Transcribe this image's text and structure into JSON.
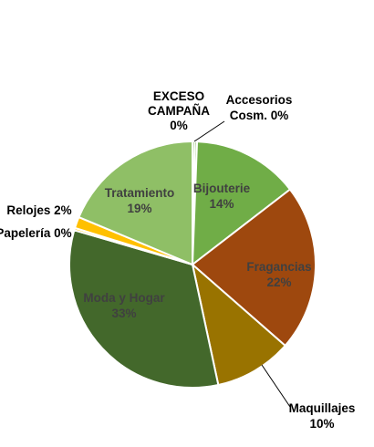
{
  "chart_data": {
    "type": "pie",
    "start_angle_deg": 0,
    "direction": "clockwise",
    "slices": [
      {
        "key": "exceso",
        "label_lines": [
          "EXCESO",
          "CAMPAÑA"
        ],
        "pct_text": "0%",
        "value": 0.3,
        "color": "#70a84a"
      },
      {
        "key": "accesorios",
        "label_lines": [
          "Accesorios",
          "Cosm. 0%"
        ],
        "pct_text": "",
        "value": 0.3,
        "color": "#70a84a"
      },
      {
        "key": "bijouterie",
        "label_lines": [
          "Bijouterie"
        ],
        "pct_text": "14%",
        "value": 14.1,
        "color": "#70ad47"
      },
      {
        "key": "fragancias",
        "label_lines": [
          "Fragancias"
        ],
        "pct_text": "22%",
        "value": 22.1,
        "color": "#9e480e"
      },
      {
        "key": "maquillajes",
        "label_lines": [
          "Maquillajes"
        ],
        "pct_text": "10%",
        "value": 10.3,
        "color": "#997300"
      },
      {
        "key": "moda",
        "label_lines": [
          "Moda y Hogar"
        ],
        "pct_text": "33%",
        "value": 33.2,
        "color": "#43682b"
      },
      {
        "key": "papeleria",
        "label_lines": [
          "Papelería 0%"
        ],
        "pct_text": "",
        "value": 0.3,
        "color": "#ffc000"
      },
      {
        "key": "relojes",
        "label_lines": [
          "Relojes 2%"
        ],
        "pct_text": "",
        "value": 1.5,
        "color": "#ffc000"
      },
      {
        "key": "tratamiento",
        "label_lines": [
          "Tratamiento"
        ],
        "pct_text": "19%",
        "value": 18.9,
        "color": "#8fbf66"
      }
    ]
  }
}
